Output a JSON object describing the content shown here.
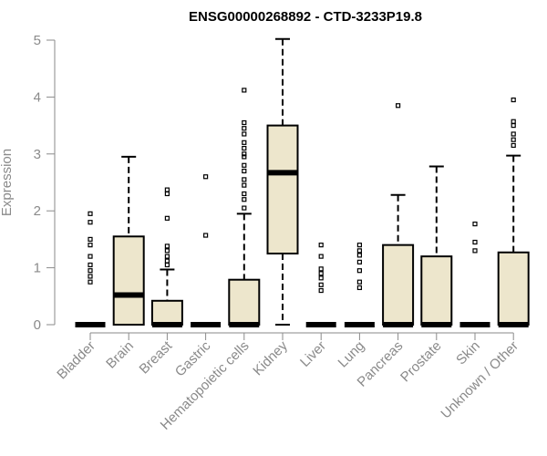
{
  "chart_data": {
    "type": "box",
    "title": "ENSG00000268892 - CTD-3233P19.8",
    "xlabel": "",
    "ylabel": "Expression",
    "ylim": [
      0,
      5
    ],
    "yticks": [
      0,
      1,
      2,
      3,
      4,
      5
    ],
    "grid": false,
    "box_fill": "#ede6cc",
    "categories": [
      "Bladder",
      "Brain",
      "Breast",
      "Gastric",
      "Hematopoietic cells",
      "Kidney",
      "Liver",
      "Lung",
      "Pancreas",
      "Prostate",
      "Skin",
      "Unknown / Other"
    ],
    "boxes": [
      {
        "category": "Bladder",
        "min": 0,
        "q1": 0,
        "median": 0,
        "q3": 0,
        "max": 0,
        "outliers": [
          0.75,
          0.85,
          0.95,
          1.05,
          1.2,
          1.4,
          1.5,
          1.8,
          1.95
        ]
      },
      {
        "category": "Brain",
        "min": 0,
        "q1": 0,
        "median": 0.52,
        "q3": 1.55,
        "max": 2.95,
        "outliers": []
      },
      {
        "category": "Breast",
        "min": 0,
        "q1": 0,
        "median": 0,
        "q3": 0.42,
        "max": 0.97,
        "outliers": [
          1.05,
          1.12,
          1.2,
          1.3,
          1.38,
          1.87,
          2.3,
          2.37
        ]
      },
      {
        "category": "Gastric",
        "min": 0,
        "q1": 0,
        "median": 0,
        "q3": 0,
        "max": 0,
        "outliers": [
          1.57,
          2.6
        ]
      },
      {
        "category": "Hematopoietic cells",
        "min": 0,
        "q1": 0,
        "median": 0,
        "q3": 0.79,
        "max": 1.95,
        "outliers": [
          2.05,
          2.2,
          2.3,
          2.45,
          2.55,
          2.7,
          2.8,
          2.95,
          3.0,
          3.1,
          3.2,
          3.35,
          3.45,
          3.55,
          4.12
        ]
      },
      {
        "category": "Kidney",
        "min": 0,
        "q1": 1.25,
        "median": 2.67,
        "q3": 3.5,
        "max": 5.02,
        "outliers": []
      },
      {
        "category": "Liver",
        "min": 0,
        "q1": 0,
        "median": 0,
        "q3": 0,
        "max": 0,
        "outliers": [
          0.6,
          0.7,
          0.82,
          0.9,
          0.98,
          1.2,
          1.4
        ]
      },
      {
        "category": "Lung",
        "min": 0,
        "q1": 0,
        "median": 0,
        "q3": 0,
        "max": 0,
        "outliers": [
          0.65,
          0.75,
          0.95,
          1.1,
          1.22,
          1.3,
          1.4
        ]
      },
      {
        "category": "Pancreas",
        "min": 0,
        "q1": 0,
        "median": 0,
        "q3": 1.4,
        "max": 2.28,
        "outliers": [
          3.85
        ]
      },
      {
        "category": "Prostate",
        "min": 0,
        "q1": 0,
        "median": 0,
        "q3": 1.2,
        "max": 2.78,
        "outliers": []
      },
      {
        "category": "Skin",
        "min": 0,
        "q1": 0,
        "median": 0,
        "q3": 0,
        "max": 0,
        "outliers": [
          1.3,
          1.45,
          1.77
        ]
      },
      {
        "category": "Unknown / Other",
        "min": 0,
        "q1": 0,
        "median": 0,
        "q3": 1.27,
        "max": 2.97,
        "outliers": [
          3.15,
          3.25,
          3.35,
          3.5,
          3.57,
          3.95
        ]
      }
    ]
  }
}
